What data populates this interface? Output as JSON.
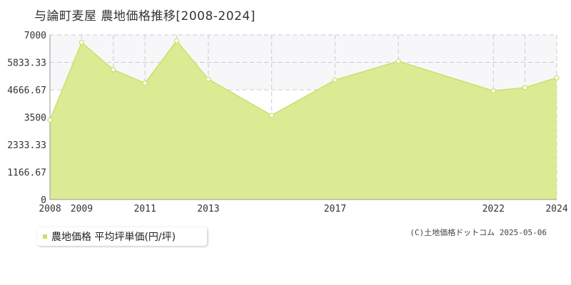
{
  "title": "与論町麦屋 農地価格推移[2008-2024]",
  "colors": {
    "fill": "#dbeb94",
    "line": "#c6e26a",
    "marker_fill": "#ffffff",
    "grid": "#cccccc",
    "band": "#f7f7fa"
  },
  "legend": {
    "label": "農地価格 平均坪単価(円/坪)"
  },
  "footer": "(C)土地価格ドットコム 2025-05-06",
  "chart_data": {
    "type": "area",
    "title": "与論町麦屋 農地価格推移[2008-2024]",
    "x": [
      2008,
      2009,
      2010,
      2011,
      2012,
      2013,
      2015,
      2017,
      2019,
      2022,
      2023,
      2024
    ],
    "values": [
      3380,
      6680,
      5520,
      4950,
      6750,
      5120,
      3580,
      5080,
      5880,
      4620,
      4760,
      5180
    ],
    "series": [
      {
        "name": "農地価格 平均坪単価(円/坪)"
      }
    ],
    "x_ticks": [
      "2008",
      "2009",
      "2011",
      "2013",
      "2017",
      "2022",
      "2024"
    ],
    "y_ticks": [
      "0",
      "1166.67",
      "2333.33",
      "3500",
      "4666.67",
      "5833.33",
      "7000"
    ],
    "xlim": [
      2008,
      2024
    ],
    "ylim": [
      0,
      7000
    ],
    "grid": true,
    "legend_position": "bottom-left"
  }
}
